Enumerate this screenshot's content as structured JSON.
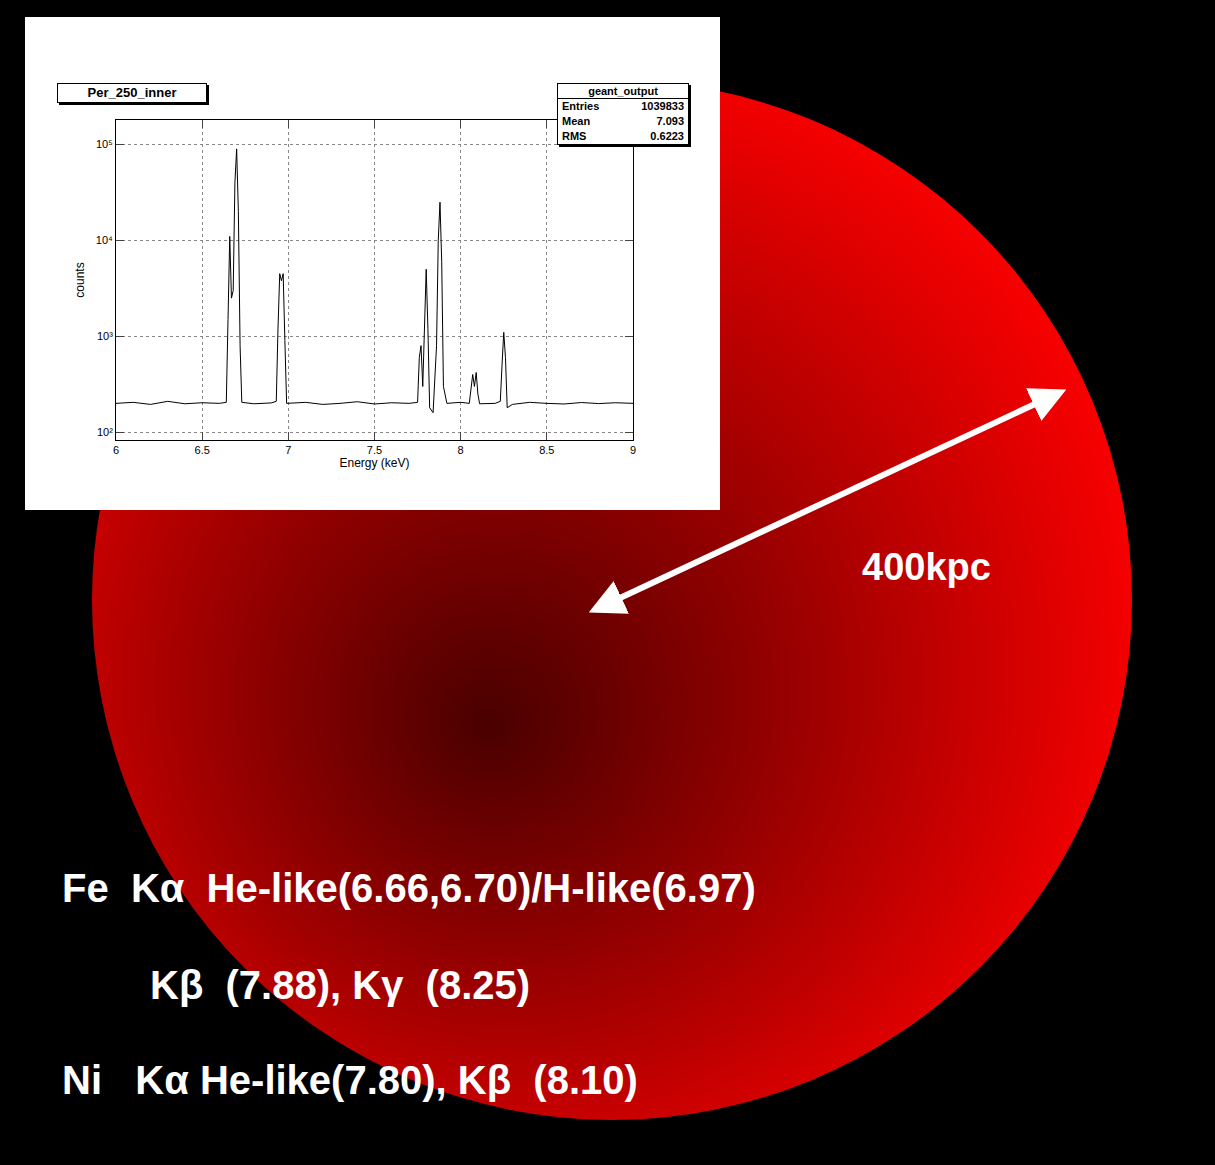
{
  "chart_data": {
    "type": "line",
    "title": "Per_250_inner",
    "xlabel": "Energy (keV)",
    "ylabel": "counts",
    "x": [
      6.0,
      6.1,
      6.2,
      6.3,
      6.4,
      6.5,
      6.6,
      6.64,
      6.65,
      6.66,
      6.67,
      6.68,
      6.69,
      6.7,
      6.71,
      6.72,
      6.73,
      6.8,
      6.9,
      6.93,
      6.94,
      6.95,
      6.96,
      6.97,
      6.98,
      6.99,
      7.1,
      7.2,
      7.3,
      7.4,
      7.5,
      7.6,
      7.7,
      7.75,
      7.76,
      7.77,
      7.78,
      7.79,
      7.8,
      7.81,
      7.82,
      7.84,
      7.86,
      7.87,
      7.88,
      7.89,
      7.9,
      7.92,
      8.0,
      8.05,
      8.06,
      8.07,
      8.08,
      8.09,
      8.1,
      8.11,
      8.2,
      8.23,
      8.24,
      8.25,
      8.26,
      8.27,
      8.3,
      8.4,
      8.5,
      8.6,
      8.7,
      8.8,
      8.9,
      9.0
    ],
    "values": [
      200,
      205,
      195,
      210,
      198,
      203,
      200,
      205,
      1500,
      11000,
      2500,
      3000,
      40000,
      90000,
      20000,
      800,
      205,
      198,
      202,
      210,
      1200,
      4500,
      3800,
      4500,
      900,
      200,
      205,
      195,
      200,
      208,
      197,
      203,
      200,
      205,
      600,
      800,
      300,
      1500,
      5000,
      1200,
      180,
      160,
      800,
      10000,
      25000,
      6000,
      300,
      200,
      205,
      200,
      280,
      400,
      300,
      420,
      250,
      198,
      200,
      210,
      500,
      1100,
      600,
      180,
      195,
      205,
      200,
      197,
      204,
      199,
      203,
      200
    ],
    "xlim": [
      6,
      9
    ],
    "ylim": [
      83,
      180000
    ],
    "xticks": [
      6,
      6.5,
      7,
      7.5,
      8,
      8.5,
      9
    ],
    "yticks": [
      {
        "value": 100,
        "label": "10²"
      },
      {
        "value": 1000,
        "label": "10³"
      },
      {
        "value": 10000,
        "label": "10⁴"
      },
      {
        "value": 100000,
        "label": "10⁵"
      }
    ],
    "log": "y",
    "grid": true,
    "color": "#000000",
    "stats": {
      "title": "geant_output",
      "entries": [
        {
          "label": "Entries",
          "value": 1039833
        },
        {
          "label": "Mean",
          "value": 7.093
        },
        {
          "label": "RMS",
          "value": 0.6223
        }
      ]
    }
  },
  "slide": {
    "scale_label": "400kpc",
    "lines": [
      "Fe  Kα  He-like(6.66,6.70)/H-like(6.97)",
      "Kβ  (7.88), Kγ  (8.25)",
      "Ni   Kα He-like(7.80), Kβ  (8.10)"
    ]
  }
}
